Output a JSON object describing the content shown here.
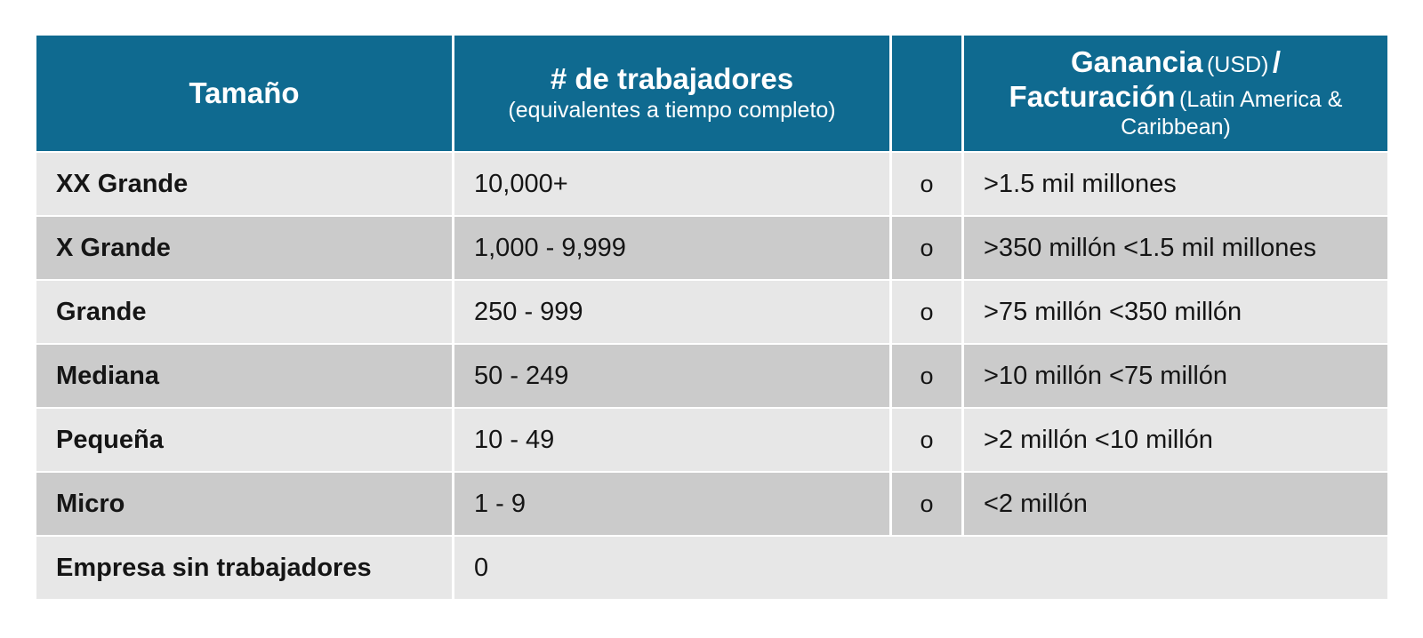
{
  "table": {
    "header": {
      "size_label": "Tamaño",
      "workers_label": "# de trabajadores",
      "workers_sub": "(equivalentes a tiempo completo)",
      "connector_label": "",
      "revenue_title_1": "Ganancia",
      "revenue_note_1": "(USD)",
      "revenue_slash": "/",
      "revenue_title_2": "Facturación",
      "revenue_note_2": "(Latin America & Caribbean)"
    },
    "rows": [
      {
        "size": "XX Grande",
        "workers": "10,000+",
        "connector": "o",
        "revenue": ">1.5 mil millones"
      },
      {
        "size": "X Grande",
        "workers": "1,000 - 9,999",
        "connector": "o",
        "revenue": ">350 millón <1.5 mil millones"
      },
      {
        "size": "Grande",
        "workers": "250 - 999",
        "connector": "o",
        "revenue": ">75 millón <350 millón"
      },
      {
        "size": "Mediana",
        "workers": "50 - 249",
        "connector": "o",
        "revenue": ">10 millón <75 millón"
      },
      {
        "size": "Pequeña",
        "workers": "10 - 49",
        "connector": "o",
        "revenue": ">2 millón <10 millón"
      },
      {
        "size": "Micro",
        "workers": "1 - 9",
        "connector": "o",
        "revenue": "<2 millón"
      },
      {
        "size": "Empresa sin trabajadores",
        "workers": "0"
      }
    ],
    "colors": {
      "header_bg": "#0f6a90",
      "header_text": "#ffffff",
      "row_light": "#e7e7e7",
      "row_dark": "#cbcbcb",
      "body_text": "#151515"
    }
  }
}
